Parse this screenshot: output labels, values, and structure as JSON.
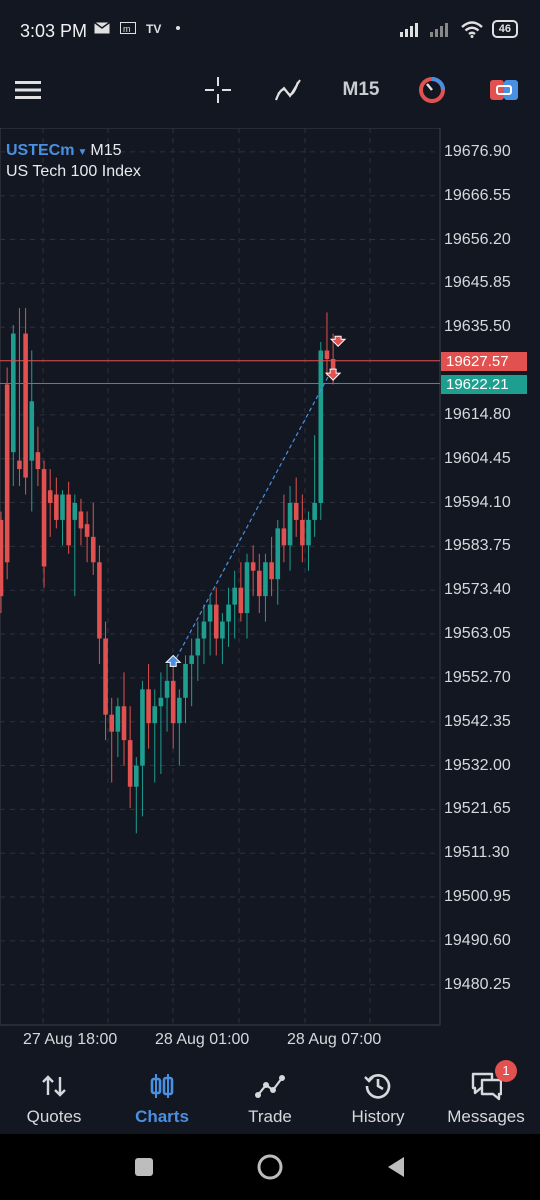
{
  "status": {
    "time": "3:03 PM",
    "battery": "46"
  },
  "toolbar": {
    "timeframe": "M15"
  },
  "chart": {
    "symbol": "USTECm",
    "timeframe": "M15",
    "instrument": "US Tech 100 Index",
    "ask_tag": "19627.57",
    "bid_tag": "19622.21",
    "price_labels": [
      "19676.90",
      "19666.55",
      "19656.20",
      "19645.85",
      "19635.50",
      "19614.80",
      "19604.45",
      "19594.10",
      "19583.75",
      "19573.40",
      "19563.05",
      "19552.70",
      "19542.35",
      "19532.00",
      "19521.65",
      "19511.30",
      "19500.95",
      "19490.60",
      "19480.25"
    ],
    "time_labels": [
      "27 Aug 18:00",
      "28 Aug 01:00",
      "28 Aug 07:00"
    ]
  },
  "chart_data": {
    "type": "candlestick",
    "ylim": [
      19470,
      19687
    ],
    "bull_color": "#1e9e8f",
    "bear_color": "#e0514f",
    "ask": 19627.57,
    "bid": 19622.21,
    "candles": [
      [
        19590,
        19592,
        19568,
        19572
      ],
      [
        19622,
        19626,
        19576,
        19580
      ],
      [
        19606,
        19636,
        19598,
        19634
      ],
      [
        19604,
        19640,
        19598,
        19602
      ],
      [
        19634,
        19640,
        19596,
        19600
      ],
      [
        19604,
        19630,
        19592,
        19618
      ],
      [
        19606,
        19612,
        19598,
        19602
      ],
      [
        19602,
        19604,
        19574,
        19579
      ],
      [
        19597,
        19602,
        19586,
        19594
      ],
      [
        19596,
        19600,
        19588,
        19590
      ],
      [
        19590,
        19597,
        19584,
        19596
      ],
      [
        19596,
        19599,
        19582,
        19584
      ],
      [
        19590,
        19596,
        19572,
        19594
      ],
      [
        19592,
        19595,
        19584,
        19588
      ],
      [
        19589,
        19592,
        19580,
        19586
      ],
      [
        19586,
        19594,
        19577,
        19580
      ],
      [
        19580,
        19584,
        19556,
        19562
      ],
      [
        19562,
        19566,
        19538,
        19544
      ],
      [
        19544,
        19548,
        19528,
        19540
      ],
      [
        19540,
        19548,
        19534,
        19546
      ],
      [
        19546,
        19554,
        19532,
        19538
      ],
      [
        19538,
        19546,
        19522,
        19527
      ],
      [
        19527,
        19534,
        19516,
        19532
      ],
      [
        19532,
        19552,
        19520,
        19550
      ],
      [
        19550,
        19556,
        19536,
        19542
      ],
      [
        19542,
        19550,
        19528,
        19546
      ],
      [
        19546,
        19554,
        19530,
        19548
      ],
      [
        19548,
        19556,
        19540,
        19552
      ],
      [
        19552,
        19556,
        19536,
        19542
      ],
      [
        19542,
        19550,
        19532,
        19548
      ],
      [
        19548,
        19558,
        19542,
        19556
      ],
      [
        19556,
        19562,
        19546,
        19558
      ],
      [
        19558,
        19566,
        19552,
        19562
      ],
      [
        19562,
        19570,
        19556,
        19566
      ],
      [
        19566,
        19572,
        19558,
        19570
      ],
      [
        19570,
        19574,
        19558,
        19562
      ],
      [
        19562,
        19568,
        19556,
        19566
      ],
      [
        19566,
        19574,
        19560,
        19570
      ],
      [
        19570,
        19578,
        19562,
        19574
      ],
      [
        19574,
        19580,
        19566,
        19568
      ],
      [
        19568,
        19582,
        19562,
        19580
      ],
      [
        19580,
        19584,
        19572,
        19578
      ],
      [
        19578,
        19582,
        19568,
        19572
      ],
      [
        19572,
        19582,
        19566,
        19580
      ],
      [
        19580,
        19586,
        19572,
        19576
      ],
      [
        19576,
        19590,
        19570,
        19588
      ],
      [
        19588,
        19596,
        19580,
        19584
      ],
      [
        19584,
        19598,
        19578,
        19594
      ],
      [
        19594,
        19600,
        19586,
        19590
      ],
      [
        19590,
        19596,
        19580,
        19584
      ],
      [
        19584,
        19592,
        19578,
        19590
      ],
      [
        19590,
        19610,
        19586,
        19594
      ],
      [
        19594,
        19632,
        19590,
        19630
      ],
      [
        19630,
        19639,
        19624,
        19628
      ],
      [
        19628,
        19634,
        19622,
        19624
      ]
    ]
  },
  "nav": {
    "items": [
      {
        "label": "Quotes"
      },
      {
        "label": "Charts"
      },
      {
        "label": "Trade"
      },
      {
        "label": "History"
      },
      {
        "label": "Messages"
      }
    ],
    "messages_badge": "1"
  }
}
